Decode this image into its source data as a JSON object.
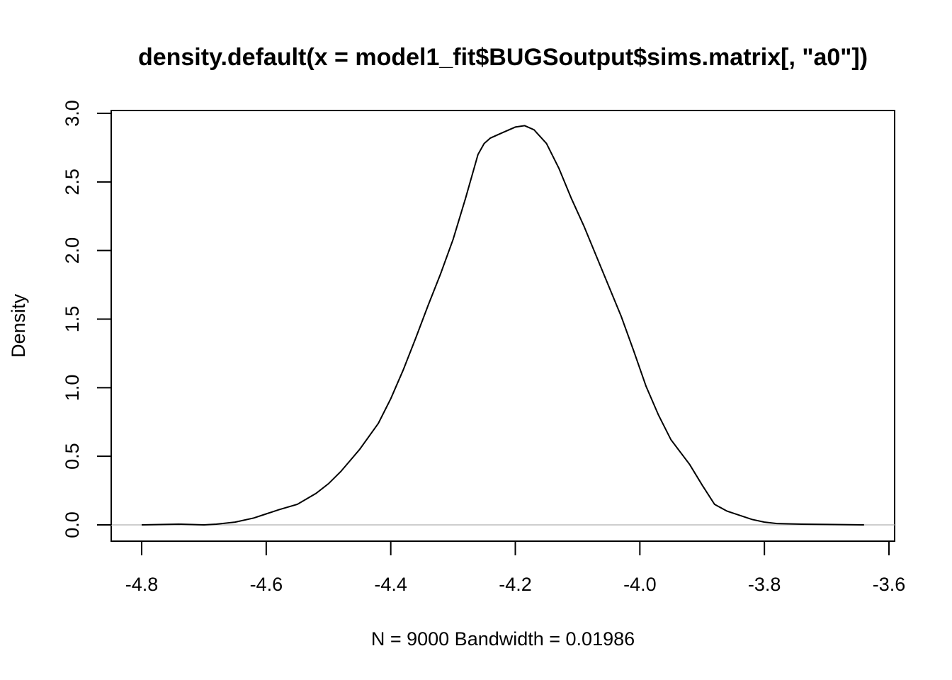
{
  "chart_data": {
    "type": "line",
    "title": "density.default(x = model1_fit$BUGSoutput$sims.matrix[, \"a0\"])",
    "xlabel": "N = 9000   Bandwidth = 0.01986",
    "ylabel": "Density",
    "xlim": [
      -4.8,
      -3.6
    ],
    "ylim": [
      0.0,
      3.0
    ],
    "x_ticks": [
      -4.8,
      -4.6,
      -4.4,
      -4.2,
      -4.0,
      -3.8,
      -3.6
    ],
    "x_tick_labels": [
      "-4.8",
      "-4.6",
      "-4.4",
      "-4.2",
      "-4.0",
      "-3.8",
      "-3.6"
    ],
    "y_ticks": [
      0.0,
      0.5,
      1.0,
      1.5,
      2.0,
      2.5,
      3.0
    ],
    "y_tick_labels": [
      "0.0",
      "0.5",
      "1.0",
      "1.5",
      "2.0",
      "2.5",
      "3.0"
    ],
    "baseline": 0,
    "grid": false,
    "series": [
      {
        "x": [
          -4.8,
          -4.74,
          -4.7,
          -4.68,
          -4.65,
          -4.62,
          -4.6,
          -4.58,
          -4.55,
          -4.52,
          -4.5,
          -4.48,
          -4.45,
          -4.42,
          -4.4,
          -4.38,
          -4.36,
          -4.34,
          -4.32,
          -4.3,
          -4.28,
          -4.26,
          -4.25,
          -4.24,
          -4.22,
          -4.2,
          -4.185,
          -4.17,
          -4.15,
          -4.13,
          -4.11,
          -4.09,
          -4.07,
          -4.05,
          -4.03,
          -4.01,
          -3.99,
          -3.97,
          -3.95,
          -3.92,
          -3.9,
          -3.88,
          -3.86,
          -3.84,
          -3.82,
          -3.8,
          -3.78,
          -3.74,
          -3.7,
          -3.64
        ],
        "y": [
          0.0,
          0.005,
          0.0,
          0.005,
          0.02,
          0.05,
          0.08,
          0.11,
          0.15,
          0.23,
          0.3,
          0.39,
          0.55,
          0.74,
          0.92,
          1.13,
          1.36,
          1.6,
          1.83,
          2.08,
          2.38,
          2.7,
          2.78,
          2.82,
          2.86,
          2.9,
          2.91,
          2.88,
          2.78,
          2.6,
          2.38,
          2.18,
          1.96,
          1.74,
          1.52,
          1.27,
          1.01,
          0.8,
          0.62,
          0.44,
          0.29,
          0.15,
          0.1,
          0.07,
          0.04,
          0.02,
          0.01,
          0.005,
          0.003,
          0.0
        ]
      }
    ]
  }
}
